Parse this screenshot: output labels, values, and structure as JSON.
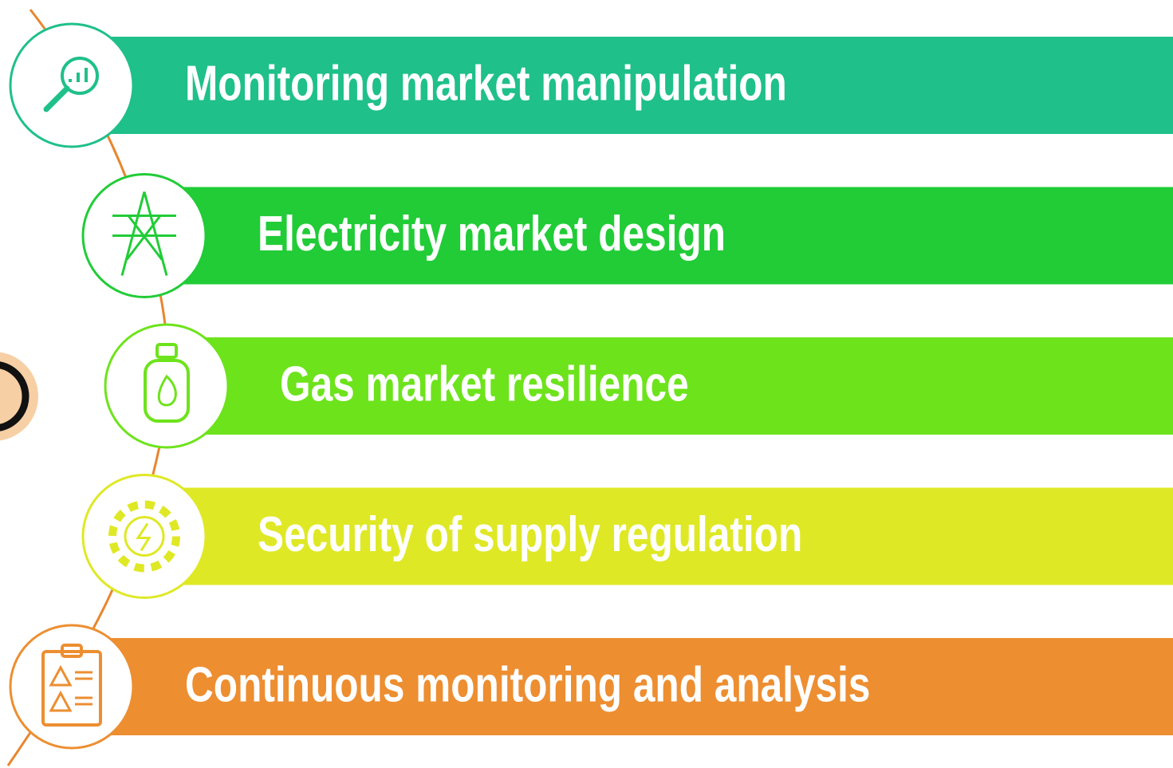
{
  "items": [
    {
      "label": "Monitoring market manipulation",
      "color": "#1fc08a"
    },
    {
      "label": "Electricity market design",
      "color": "#21cc37"
    },
    {
      "label": "Gas market resilience",
      "color": "#6de31c"
    },
    {
      "label": "Security of supply regulation",
      "color": "#dfe825"
    },
    {
      "label": "Continuous monitoring and analysis",
      "color": "#ed8e31"
    }
  ]
}
